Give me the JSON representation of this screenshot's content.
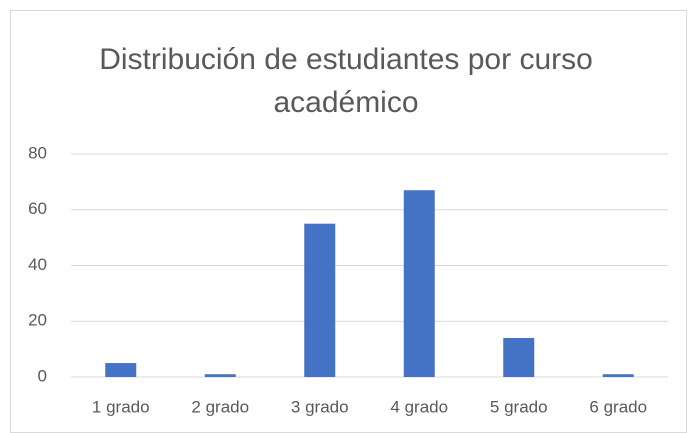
{
  "chart_data": {
    "type": "bar",
    "title": "Distribución de estudiantes por curso académico",
    "categories": [
      "1 grado",
      "2 grado",
      "3 grado",
      "4 grado",
      "5 grado",
      "6 grado"
    ],
    "values": [
      5,
      1,
      55,
      67,
      14,
      1
    ],
    "color": "#4472c4",
    "ylim": [
      0,
      80
    ],
    "yticks": [
      0,
      20,
      40,
      60,
      80
    ],
    "grid": true
  }
}
